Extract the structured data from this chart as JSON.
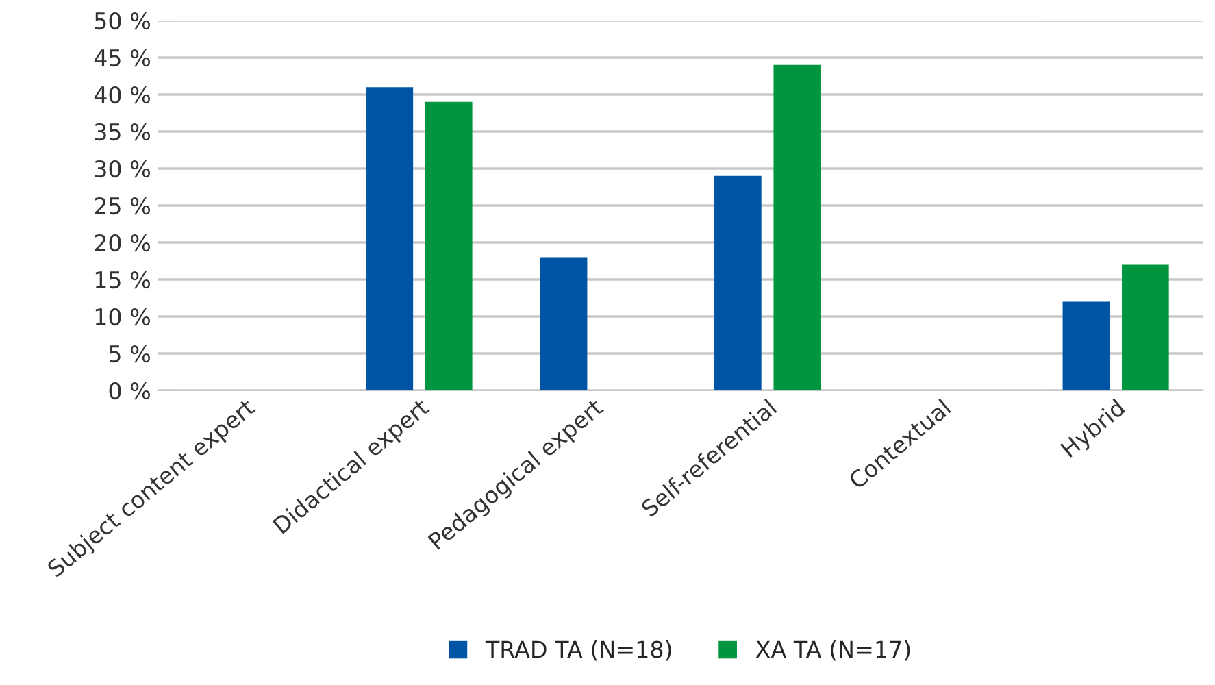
{
  "chart_data": {
    "type": "bar",
    "categories": [
      "Subject content expert",
      "Didactical expert",
      "Pedagogical expert",
      "Self-referential",
      "Contextual",
      "Hybrid"
    ],
    "series": [
      {
        "name": "TRAD TA (N=18)",
        "color": "#0054a6",
        "values": [
          null,
          41,
          18,
          29,
          null,
          12
        ]
      },
      {
        "name": "XA TA (N=17)",
        "color": "#00953f",
        "values": [
          null,
          39,
          null,
          44,
          null,
          17
        ]
      }
    ],
    "ylim": [
      0,
      50
    ],
    "yticks": [
      {
        "value": 0,
        "label": "0 %"
      },
      {
        "value": 5,
        "label": "5 %"
      },
      {
        "value": 10,
        "label": "10 %"
      },
      {
        "value": 15,
        "label": "15 %"
      },
      {
        "value": 20,
        "label": "20 %"
      },
      {
        "value": 25,
        "label": "25 %"
      },
      {
        "value": 30,
        "label": "30 %"
      },
      {
        "value": 35,
        "label": "35 %"
      },
      {
        "value": 40,
        "label": "40 %"
      },
      {
        "value": 45,
        "label": "45 %"
      },
      {
        "value": 50,
        "label": "50 %"
      }
    ],
    "grid": "y",
    "legend": "bottom"
  }
}
